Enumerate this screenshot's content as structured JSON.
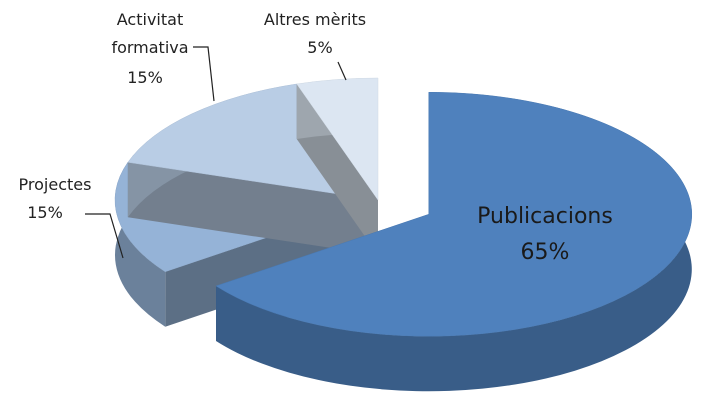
{
  "chart_data": {
    "type": "pie3d",
    "categories": [
      "Publicacions",
      "Projectes",
      "Activitat formativa",
      "Altres mèrits"
    ],
    "values": [
      65,
      15,
      15,
      5
    ],
    "value_labels": [
      "65%",
      "15%",
      "15%",
      "5%"
    ],
    "colors": [
      "#4f81bd",
      "#95b3d7",
      "#b9cde5",
      "#dce6f2"
    ],
    "exploded": [
      true,
      false,
      false,
      false
    ]
  }
}
